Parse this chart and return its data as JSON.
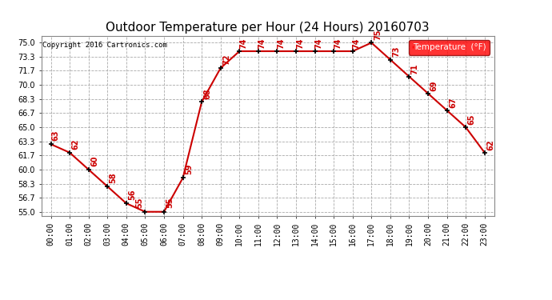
{
  "title": "Outdoor Temperature per Hour (24 Hours) 20160703",
  "copyright": "Copyright 2016 Cartronics.com",
  "legend_label": "Temperature  (°F)",
  "hours": [
    0,
    1,
    2,
    3,
    4,
    5,
    6,
    7,
    8,
    9,
    10,
    11,
    12,
    13,
    14,
    15,
    16,
    17,
    18,
    19,
    20,
    21,
    22,
    23
  ],
  "temps": [
    63,
    62,
    60,
    58,
    56,
    55,
    55,
    59,
    68,
    72,
    74,
    74,
    74,
    74,
    74,
    74,
    74,
    75,
    73,
    71,
    69,
    67,
    65,
    62
  ],
  "hour_labels": [
    "00:00\n0",
    "01:00\n0",
    "02:00\n0",
    "03:00\n0",
    "04:00\n0",
    "05:00\n0",
    "06:00\n0",
    "07:00\n0",
    "08:00\n0",
    "09:00\n0",
    "10:00\n1",
    "11:00\n1",
    "12:00\n1",
    "13:00\n1",
    "14:00\n1",
    "15:00\n1",
    "16:00\n1",
    "17:00\n1",
    "18:00\n1",
    "19:00\n1",
    "20:00\n2",
    "21:00\n2",
    "22:00\n2",
    "23:00\n2"
  ],
  "yticks": [
    55.0,
    56.7,
    58.3,
    60.0,
    61.7,
    63.3,
    65.0,
    66.7,
    68.3,
    70.0,
    71.7,
    73.3,
    75.0
  ],
  "ytick_labels": [
    "55.0",
    "56.7",
    "58.3",
    "60.0",
    "61.7",
    "63.3",
    "65.0",
    "66.7",
    "68.3",
    "70.0",
    "71.7",
    "73.3",
    "75.0"
  ],
  "ylim": [
    54.5,
    75.8
  ],
  "line_color": "#cc0000",
  "marker_color": "#000000",
  "label_color": "#cc0000",
  "bg_color": "#ffffff",
  "grid_color": "#aaaaaa",
  "title_fontsize": 11,
  "tick_fontsize": 7,
  "label_fontsize": 7,
  "temp_label_offsets_x": [
    0.05,
    0.1,
    0.1,
    0.1,
    0.1,
    -0.5,
    0.1,
    0.1,
    0.1,
    0.1,
    0.0,
    0.0,
    0.0,
    0.0,
    0.0,
    0.0,
    0.0,
    0.15,
    0.1,
    0.1,
    0.1,
    0.1,
    0.1,
    0.1
  ],
  "temp_label_offsets_y": [
    0.4,
    0.4,
    0.4,
    0.4,
    0.4,
    0.4,
    0.4,
    0.4,
    0.3,
    0.4,
    0.3,
    0.3,
    0.3,
    0.3,
    0.3,
    0.3,
    0.3,
    0.3,
    0.3,
    0.3,
    0.3,
    0.3,
    0.3,
    0.3
  ]
}
